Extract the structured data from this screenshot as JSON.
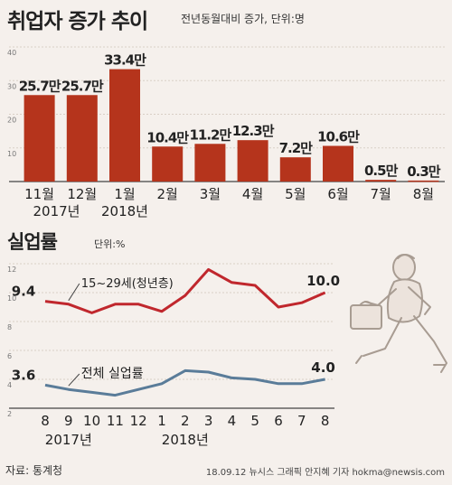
{
  "header": {
    "title": "취업자 증가 추이",
    "subtitle": "전년동월대비 증가, 단위:명"
  },
  "unemployment_header": {
    "title": "실업률",
    "unit": "단위:%"
  },
  "footer": {
    "source": "자료: 통계청",
    "credit": "18.09.12 뉴시스 그래픽 안지혜 기자 hokma@newsis.com"
  },
  "colors": {
    "bar": "#b5341c",
    "youth_line": "#c0272d",
    "total_line": "#5a7c99",
    "background": "#f5f0ec"
  },
  "chart_data": [
    {
      "type": "bar",
      "title": "취업자 증가 추이",
      "categories": [
        "11월",
        "12월",
        "1월",
        "2월",
        "3월",
        "4월",
        "5월",
        "6월",
        "7월",
        "8월"
      ],
      "year_labels": [
        "2017년",
        "2018년"
      ],
      "values": [
        25.7,
        25.7,
        33.4,
        10.4,
        11.2,
        12.3,
        7.2,
        10.6,
        0.5,
        0.3
      ],
      "value_labels": [
        "25.7만",
        "25.7만",
        "33.4만",
        "10.4만",
        "11.2만",
        "12.3만",
        "7.2만",
        "10.6만",
        "0.5만",
        "0.3만"
      ],
      "yticks": [
        10,
        20,
        30,
        40
      ],
      "ylim": [
        0,
        40
      ]
    },
    {
      "type": "line",
      "title": "실업률",
      "categories": [
        "8",
        "9",
        "10",
        "11",
        "12",
        "1",
        "2",
        "3",
        "4",
        "5",
        "6",
        "7",
        "8"
      ],
      "year_labels": [
        "2017년",
        "2018년"
      ],
      "yticks": [
        2,
        4,
        6,
        8,
        10,
        12
      ],
      "ylim": [
        2,
        12
      ],
      "series": [
        {
          "name": "15~29세(청년층)",
          "values": [
            9.4,
            9.2,
            8.6,
            9.2,
            9.2,
            8.7,
            9.8,
            11.6,
            10.7,
            10.5,
            9.0,
            9.3,
            10.0
          ],
          "start_label": "9.4",
          "end_label": "10.0"
        },
        {
          "name": "전체 실업률",
          "values": [
            3.6,
            3.3,
            3.1,
            2.9,
            3.3,
            3.7,
            4.6,
            4.5,
            4.1,
            4.0,
            3.7,
            3.7,
            4.0
          ],
          "start_label": "3.6",
          "end_label": "4.0"
        }
      ]
    }
  ]
}
